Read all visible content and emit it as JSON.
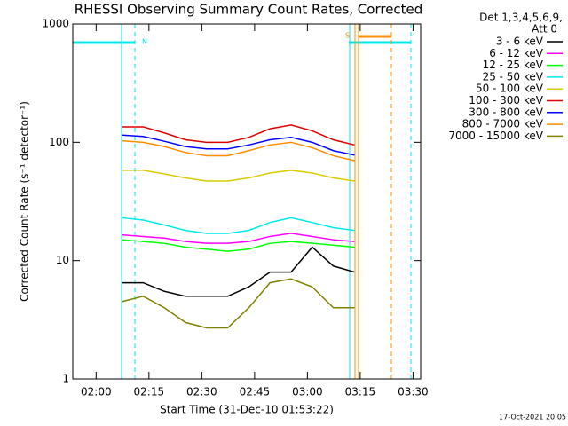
{
  "chart_data": {
    "type": "line",
    "title": "RHESSI Observing Summary Count Rates, Corrected",
    "x_label": "Start Time (31-Dec-10 01:53:22)",
    "y_label": "Corrected Count Rate (s⁻¹ detector⁻¹)",
    "legend_header": [
      "Det 1,3,4,5,6,9,",
      "Att 0"
    ],
    "footer": "17-Oct-2021 20:05",
    "annotations": [
      "N",
      "S"
    ],
    "log_y": true,
    "xlim": [
      0,
      98.8
    ],
    "ylim": [
      1,
      1000
    ],
    "xticks": [
      {
        "value": 6.633,
        "label": "02:00"
      },
      {
        "value": 21.633,
        "label": "02:15"
      },
      {
        "value": 36.633,
        "label": "02:30"
      },
      {
        "value": 51.633,
        "label": "02:45"
      },
      {
        "value": 66.633,
        "label": "03:00"
      },
      {
        "value": 81.633,
        "label": "03:15"
      },
      {
        "value": 96.633,
        "label": "03:30"
      }
    ],
    "yticks": [
      1,
      10,
      100,
      1000
    ],
    "x": [
      14,
      20,
      26,
      32,
      38,
      44,
      50,
      56,
      62,
      68,
      74,
      80
    ],
    "series": [
      {
        "name": "3 - 6 keV",
        "color": "#000000",
        "values": [
          6.5,
          6.5,
          5.5,
          5,
          5,
          5,
          6,
          8,
          8,
          13,
          9,
          8
        ]
      },
      {
        "name": "6 - 12 keV",
        "color": "#ff00ff",
        "values": [
          16.5,
          16,
          15.5,
          14.5,
          14,
          14,
          14.5,
          16,
          17,
          16,
          15,
          14.5
        ]
      },
      {
        "name": "12 - 25 keV",
        "color": "#00ff00",
        "values": [
          15,
          14.5,
          14,
          13,
          12.5,
          12,
          12.5,
          14,
          14.5,
          14,
          13.5,
          13
        ]
      },
      {
        "name": "25 - 50 keV",
        "color": "#00e8e8",
        "values": [
          23,
          22,
          20,
          18,
          17,
          17,
          18,
          21,
          23,
          21,
          19,
          18
        ]
      },
      {
        "name": "50 - 100 keV",
        "color": "#d8cc00",
        "values": [
          58,
          58,
          54,
          50,
          47,
          47,
          50,
          55,
          58,
          55,
          50,
          47
        ]
      },
      {
        "name": "100 - 300 keV",
        "color": "#e00000",
        "values": [
          135,
          135,
          120,
          105,
          100,
          100,
          110,
          130,
          140,
          125,
          105,
          95
        ]
      },
      {
        "name": "300 - 800 keV",
        "color": "#0000ff",
        "values": [
          115,
          112,
          102,
          92,
          88,
          88,
          95,
          105,
          110,
          100,
          85,
          78
        ]
      },
      {
        "name": "800 - 7000 keV",
        "color": "#ff8c00",
        "values": [
          103,
          100,
          92,
          82,
          77,
          77,
          85,
          95,
          100,
          90,
          77,
          70
        ]
      },
      {
        "name": "7000 - 15000 keV",
        "color": "#808000",
        "values": [
          4.5,
          5,
          4,
          3,
          2.7,
          2.7,
          4,
          6.5,
          7,
          6,
          4,
          4
        ]
      }
    ]
  }
}
